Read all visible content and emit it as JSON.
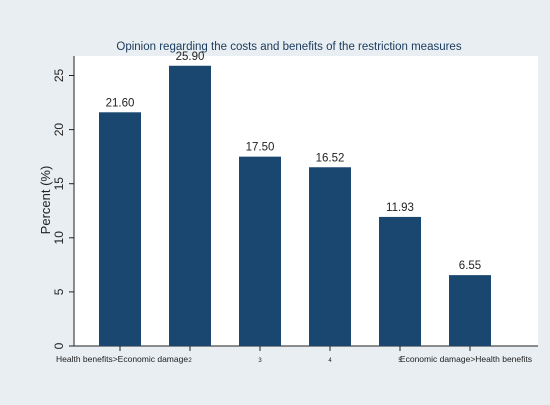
{
  "colors": {
    "outer_background": "#e8eef2",
    "plot_background": "#ffffff",
    "bar_fill": "#1a476f",
    "text": "#222222",
    "title_text": "#1a3a5c"
  },
  "chart_data": {
    "type": "bar",
    "title": "Opinion regarding the costs and benefits of the restriction measures",
    "xlabel": "",
    "ylabel": "Percent (%)",
    "ylim": [
      0,
      27.5
    ],
    "yticks": [
      0,
      5,
      10,
      15,
      20,
      25
    ],
    "grid": false,
    "legend": "none",
    "categories": [
      "Health benefits>Economic damage",
      "2",
      "3",
      "4",
      "5",
      "Economic damage>Health benefits"
    ],
    "values": [
      21.6,
      25.9,
      17.5,
      16.52,
      11.93,
      6.55
    ],
    "value_labels": [
      "21.60",
      "25.90",
      "17.50",
      "16.52",
      "11.93",
      "6.55"
    ]
  }
}
